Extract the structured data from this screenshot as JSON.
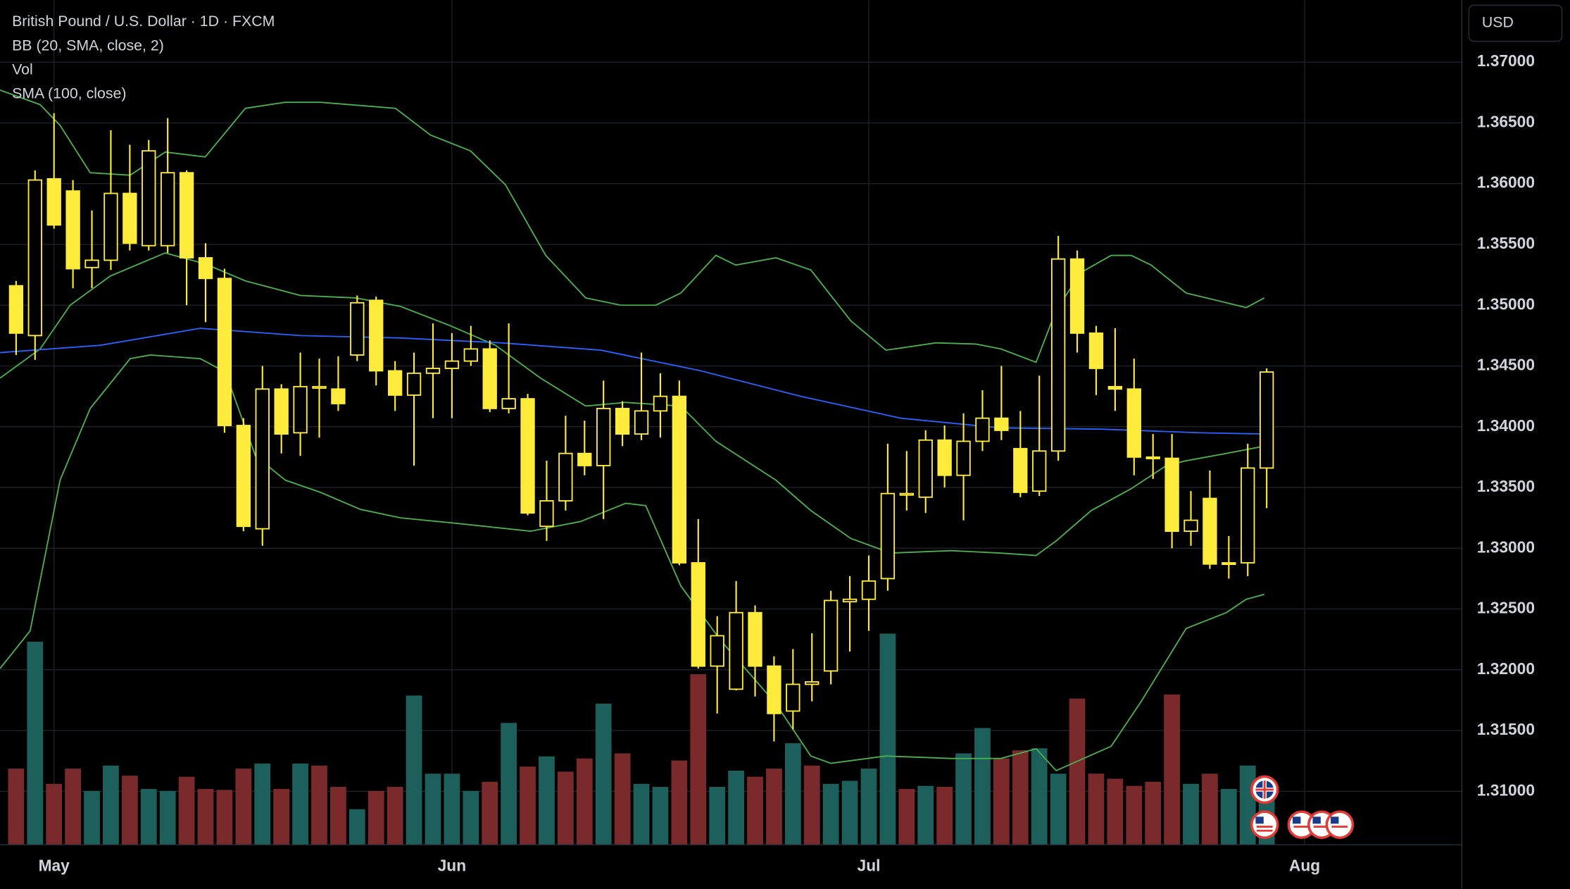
{
  "chart_data": {
    "type": "candlestick",
    "title": "British Pound / U.S. Dollar · 1D · FXCM",
    "legend": [
      "BB (20, SMA, close, 2)",
      "Vol",
      "SMA (100, close)"
    ],
    "currency": "USD",
    "candle_color": "#ffeb3b",
    "grid": true,
    "categories": [
      null,
      null,
      null,
      null,
      null,
      null,
      null,
      null,
      null,
      null,
      null,
      null,
      null,
      null,
      null,
      null,
      null,
      null,
      null,
      null,
      null,
      null,
      null,
      null,
      null,
      null,
      null,
      null,
      null,
      null,
      null,
      null,
      null,
      null,
      null,
      null,
      null,
      null,
      null,
      null,
      null,
      null,
      null,
      null,
      null,
      null,
      null,
      null,
      null,
      null,
      null,
      null,
      null,
      null,
      null,
      null,
      null,
      null,
      null,
      null,
      null,
      null,
      null,
      null,
      null,
      null,
      null
    ],
    "open": [
      1.3516,
      1.3475,
      1.3604,
      1.3594,
      1.3531,
      1.3537,
      1.3592,
      1.3549,
      1.3549,
      1.3609,
      1.3539,
      1.3522,
      1.3401,
      1.3316,
      1.3431,
      1.3395,
      1.3432,
      1.3431,
      1.3459,
      1.3504,
      1.3446,
      1.3426,
      1.3444,
      1.3448,
      1.3454,
      1.3464,
      1.3415,
      1.3423,
      1.3318,
      1.3339,
      1.3378,
      1.3368,
      1.3415,
      1.3394,
      1.3413,
      1.3425,
      1.3288,
      1.3203,
      1.3184,
      1.3247,
      1.3203,
      1.3166,
      1.3188,
      1.3199,
      1.3256,
      1.3258,
      1.3275,
      1.3344,
      1.3342,
      1.3389,
      1.336,
      1.3388,
      1.3407,
      1.3382,
      1.3347,
      1.338,
      1.3538,
      1.3477,
      1.3433,
      1.3431,
      1.3375,
      1.3374,
      1.3314,
      1.3341,
      1.3288,
      1.3288,
      1.3366
    ],
    "high": [
      1.352,
      1.3611,
      1.3658,
      1.3603,
      1.3578,
      1.3644,
      1.3632,
      1.3636,
      1.3654,
      1.3611,
      1.3551,
      1.353,
      1.3407,
      1.345,
      1.3435,
      1.3461,
      1.3456,
      1.3458,
      1.3508,
      1.3507,
      1.3454,
      1.3461,
      1.3485,
      1.3477,
      1.3483,
      1.3471,
      1.3485,
      1.3427,
      1.3372,
      1.3409,
      1.3405,
      1.3438,
      1.3421,
      1.3461,
      1.3444,
      1.3438,
      1.3324,
      1.3244,
      1.3273,
      1.3253,
      1.3211,
      1.3217,
      1.323,
      1.3265,
      1.3277,
      1.3294,
      1.3386,
      1.338,
      1.3397,
      1.3401,
      1.3411,
      1.343,
      1.345,
      1.3413,
      1.3442,
      1.3557,
      1.3545,
      1.3483,
      1.3481,
      1.3456,
      1.3394,
      1.3394,
      1.3347,
      1.3364,
      1.331,
      1.3386,
      1.3448
    ],
    "low": [
      1.3459,
      1.3455,
      1.3563,
      1.3514,
      1.3514,
      1.3529,
      1.3545,
      1.3545,
      1.3543,
      1.35,
      1.3486,
      1.3395,
      1.3314,
      1.3302,
      1.3378,
      1.3376,
      1.3391,
      1.3413,
      1.3454,
      1.3434,
      1.3413,
      1.3368,
      1.3407,
      1.3407,
      1.345,
      1.3412,
      1.3411,
      1.3327,
      1.3306,
      1.3331,
      1.336,
      1.3324,
      1.3384,
      1.3389,
      1.3391,
      1.3286,
      1.3201,
      1.3164,
      1.3183,
      1.3178,
      1.3141,
      1.3151,
      1.3174,
      1.3188,
      1.3215,
      1.3232,
      1.3265,
      1.3331,
      1.3329,
      1.335,
      1.3323,
      1.338,
      1.3389,
      1.3342,
      1.3343,
      1.3372,
      1.3461,
      1.3426,
      1.3413,
      1.336,
      1.3357,
      1.33,
      1.3302,
      1.3283,
      1.3275,
      1.3277,
      1.3333
    ],
    "close": [
      1.3477,
      1.3603,
      1.3566,
      1.353,
      1.3537,
      1.3592,
      1.3551,
      1.3627,
      1.3609,
      1.3539,
      1.3522,
      1.3401,
      1.3318,
      1.3431,
      1.3394,
      1.3433,
      1.3433,
      1.3419,
      1.3502,
      1.3446,
      1.3426,
      1.3444,
      1.3448,
      1.3454,
      1.3464,
      1.3415,
      1.3423,
      1.3329,
      1.3339,
      1.3378,
      1.3368,
      1.3415,
      1.3394,
      1.3413,
      1.3425,
      1.3288,
      1.3203,
      1.3228,
      1.3247,
      1.3203,
      1.3164,
      1.3188,
      1.319,
      1.3257,
      1.3258,
      1.3273,
      1.3345,
      1.3345,
      1.3389,
      1.336,
      1.3388,
      1.3407,
      1.3397,
      1.3346,
      1.338,
      1.3538,
      1.3477,
      1.3448,
      1.3431,
      1.3375,
      1.3374,
      1.3314,
      1.3323,
      1.3287,
      1.3287,
      1.3366,
      1.3445
    ],
    "volume": [
      75,
      200,
      60,
      75,
      53,
      78,
      68,
      55,
      53,
      67,
      55,
      54,
      75,
      80,
      55,
      80,
      78,
      57,
      35,
      53,
      57,
      147,
      70,
      70,
      53,
      62,
      120,
      77,
      87,
      72,
      85,
      139,
      90,
      60,
      57,
      83,
      168,
      57,
      73,
      67,
      75,
      100,
      78,
      60,
      63,
      75,
      208,
      55,
      58,
      57,
      90,
      115,
      85,
      93,
      95,
      70,
      144,
      70,
      65,
      58,
      62,
      148,
      60,
      70,
      55,
      78,
      45
    ],
    "volume_colors": [
      "#7a2a2b",
      "#1d5f5a",
      "#7a2a2b",
      "#7a2a2b",
      "#1d5f5a",
      "#1d5f5a",
      "#7a2a2b",
      "#1d5f5a",
      "#1d5f5a",
      "#7a2a2b",
      "#7a2a2b",
      "#7a2a2b",
      "#7a2a2b",
      "#1d5f5a",
      "#7a2a2b",
      "#1d5f5a",
      "#7a2a2b",
      "#7a2a2b",
      "#1d5f5a",
      "#7a2a2b",
      "#7a2a2b",
      "#1d5f5a",
      "#1d5f5a",
      "#1d5f5a",
      "#1d5f5a",
      "#7a2a2b",
      "#1d5f5a",
      "#7a2a2b",
      "#1d5f5a",
      "#7a2a2b",
      "#7a2a2b",
      "#1d5f5a",
      "#7a2a2b",
      "#1d5f5a",
      "#1d5f5a",
      "#7a2a2b",
      "#7a2a2b",
      "#1d5f5a",
      "#1d5f5a",
      "#7a2a2b",
      "#7a2a2b",
      "#1d5f5a",
      "#7a2a2b",
      "#1d5f5a",
      "#1d5f5a",
      "#1d5f5a",
      "#1d5f5a",
      "#7a2a2b",
      "#1d5f5a",
      "#7a2a2b",
      "#1d5f5a",
      "#1d5f5a",
      "#7a2a2b",
      "#7a2a2b",
      "#1d5f5a",
      "#1d5f5a",
      "#7a2a2b",
      "#7a2a2b",
      "#7a2a2b",
      "#7a2a2b",
      "#7a2a2b",
      "#7a2a2b",
      "#1d5f5a",
      "#7a2a2b",
      "#1d5f5a",
      "#1d5f5a",
      "#1d5f5a"
    ],
    "overlays": [
      {
        "color": "#4caf50",
        "x": [
          -0.85,
          1.27,
          2.32,
          3.91,
          6.02,
          7.87,
          9.98,
          12.1,
          14.21,
          16.06,
          20.02,
          21.87,
          23.98,
          25.83,
          27.95,
          30.06,
          31.91,
          33.76,
          35.08,
          36.93,
          37.98,
          40.1,
          41.94,
          44.06,
          45.91,
          48.55,
          50.66,
          51.98,
          53.83,
          54.89,
          56.21,
          57.79,
          58.85,
          59.9,
          61.75,
          63.87,
          64.92,
          65.87
        ],
        "values": [
          1.3677,
          1.3665,
          1.3648,
          1.3609,
          1.3607,
          1.3626,
          1.3622,
          1.3662,
          1.3667,
          1.3667,
          1.3662,
          1.364,
          1.3627,
          1.3599,
          1.3541,
          1.3506,
          1.35,
          1.35,
          1.351,
          1.3541,
          1.3533,
          1.3539,
          1.3529,
          1.3487,
          1.3463,
          1.3469,
          1.3468,
          1.3464,
          1.3453,
          1.3496,
          1.3527,
          1.3541,
          1.3541,
          1.3533,
          1.351,
          1.3502,
          1.3498,
          1.3506
        ]
      },
      {
        "color": "#4caf50",
        "x": [
          -0.85,
          1.27,
          2.85,
          4.97,
          7.87,
          9.98,
          12.1,
          15.0,
          17.91,
          20.29,
          22.93,
          25.3,
          27.68,
          30.06,
          32.17,
          35.08,
          36.93,
          40.1,
          41.94,
          44.06,
          46.17,
          49.34,
          51.98,
          53.83,
          54.89,
          56.74,
          58.85,
          60.7,
          61.75,
          63.87,
          65.87
        ],
        "values": [
          1.344,
          1.3464,
          1.35,
          1.3524,
          1.3543,
          1.3534,
          1.352,
          1.3508,
          1.3506,
          1.3499,
          1.3483,
          1.3467,
          1.344,
          1.3417,
          1.342,
          1.3417,
          1.3388,
          1.3356,
          1.3331,
          1.3308,
          1.3296,
          1.3298,
          1.3296,
          1.3294,
          1.3306,
          1.3331,
          1.3349,
          1.3368,
          1.3372,
          1.3378,
          1.3384
        ]
      },
      {
        "color": "#4caf50",
        "x": [
          -0.85,
          0.74,
          2.32,
          3.91,
          6.02,
          7.08,
          9.72,
          11.04,
          12.63,
          14.21,
          16.06,
          18.17,
          20.29,
          22.93,
          27.15,
          29.79,
          32.17,
          33.23,
          35.08,
          37.19,
          40.1,
          41.94,
          43.0,
          45.91,
          49.34,
          51.98,
          53.83,
          54.89,
          57.79,
          59.38,
          61.75,
          63.87,
          64.92,
          65.87
        ],
        "values": [
          1.3201,
          1.3232,
          1.3356,
          1.3415,
          1.3456,
          1.3459,
          1.3456,
          1.3445,
          1.3376,
          1.3356,
          1.3346,
          1.3332,
          1.3325,
          1.3321,
          1.3314,
          1.3322,
          1.3337,
          1.3335,
          1.3269,
          1.3224,
          1.3172,
          1.3129,
          1.3123,
          1.3129,
          1.3127,
          1.3127,
          1.3135,
          1.3117,
          1.3137,
          1.3174,
          1.3234,
          1.3247,
          1.3258,
          1.3262
        ]
      },
      {
        "color": "#2962ff",
        "x": [
          -0.85,
          4.44,
          9.72,
          15.0,
          20.29,
          25.58,
          30.86,
          36.13,
          41.41,
          46.7,
          51.98,
          57.27,
          62.53,
          65.87
        ],
        "values": [
          1.3461,
          1.3467,
          1.3481,
          1.3475,
          1.3473,
          1.3469,
          1.3463,
          1.3446,
          1.3425,
          1.3407,
          1.3399,
          1.3398,
          1.3395,
          1.3394
        ]
      }
    ],
    "xlim": [
      -0.85,
      76.3
    ],
    "xticks": [
      {
        "value": 2,
        "label": "May"
      },
      {
        "value": 23,
        "label": "Jun"
      },
      {
        "value": 45,
        "label": "Jul"
      },
      {
        "value": 68,
        "label": "Aug"
      }
    ],
    "ylim": [
      1.3056,
      1.3751
    ],
    "yticks": [
      {
        "value": 1.31,
        "label": "1.31000"
      },
      {
        "value": 1.315,
        "label": "1.31500"
      },
      {
        "value": 1.32,
        "label": "1.32000"
      },
      {
        "value": 1.325,
        "label": "1.32500"
      },
      {
        "value": 1.33,
        "label": "1.33000"
      },
      {
        "value": 1.335,
        "label": "1.33500"
      },
      {
        "value": 1.34,
        "label": "1.34000"
      },
      {
        "value": 1.345,
        "label": "1.34500"
      },
      {
        "value": 1.35,
        "label": "1.35000"
      },
      {
        "value": 1.355,
        "label": "1.35500"
      },
      {
        "value": 1.36,
        "label": "1.36000"
      },
      {
        "value": 1.365,
        "label": "1.36500"
      },
      {
        "value": 1.37,
        "label": "1.37000"
      }
    ]
  }
}
